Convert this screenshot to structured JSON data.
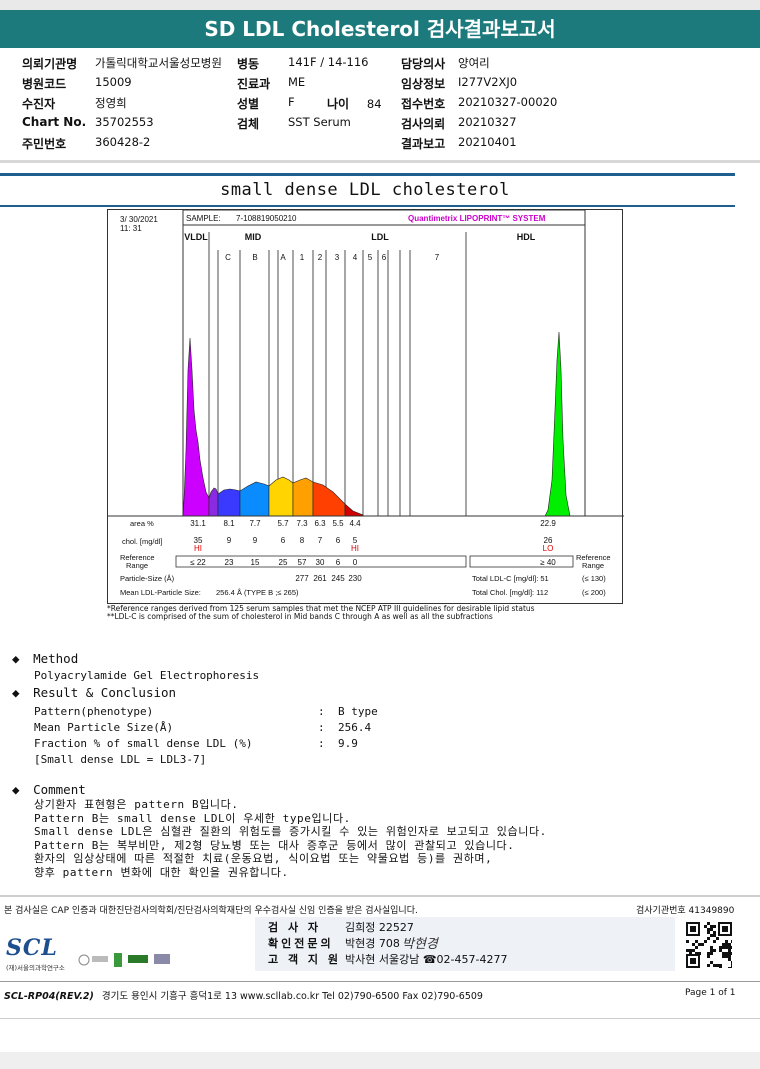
{
  "title": "SD LDL Cholesterol 검사결과보고서",
  "header": {
    "rows": [
      [
        {
          "k": "의뢰기관명",
          "v": "가톨릭대학교서울성모병원"
        },
        {
          "k": "병동",
          "v": "141F / 14-116"
        },
        {
          "k": "담당의사",
          "v": "양여리"
        }
      ],
      [
        {
          "k": "병원코드",
          "v": "15009"
        },
        {
          "k": "진료과",
          "v": "ME"
        },
        {
          "k": "임상정보",
          "v": "I277V2XJ0"
        }
      ],
      [
        {
          "k": "수진자",
          "v": "정영희"
        },
        {
          "k": "성별",
          "v": "F"
        },
        {
          "k": "접수번호",
          "v": "20210327-00020"
        }
      ],
      [
        {
          "k": "Chart No.",
          "v": "35702553"
        },
        {
          "k": "검체",
          "v": "SST Serum"
        },
        {
          "k": "검사의뢰",
          "v": "20210327"
        }
      ],
      [
        {
          "k": "주민번호",
          "v": "360428-2"
        },
        {
          "k": "",
          "v": ""
        },
        {
          "k": "결과보고",
          "v": "20210401"
        }
      ]
    ],
    "age_label": "나이",
    "age_value": "84"
  },
  "doc_title": "small dense LDL cholesterol",
  "chart_data": {
    "type": "area",
    "date": "3/ 30/2021",
    "time": "11: 31",
    "sample_label": "SAMPLE:",
    "sample_id": "7-108819050210",
    "brand": "Quantimetrix LIPOPRINT™ SYSTEM",
    "regions": [
      "VLDL",
      "MID",
      "LDL",
      "HDL"
    ],
    "bands": [
      "C",
      "B",
      "A",
      "1",
      "2",
      "3",
      "4",
      "5",
      "6",
      "7"
    ],
    "band_colors": [
      "#cc00ff",
      "#8a2be2",
      "#3a3aff",
      "#0a8cff",
      "#ffd400",
      "#ffa000",
      "#ff4000",
      "#d00000"
    ],
    "hdl_color": "#00ee00",
    "row_labels": {
      "area": "area %",
      "chol": "chol. [mg/dl]",
      "ref": "Reference Range",
      "particle": "Particle-Size (Å)",
      "mean": "Mean LDL-Particle Size:"
    },
    "area_pct": [
      "31.1",
      "8.1",
      "7.7",
      "5.7",
      "7.3",
      "6.3",
      "5.5",
      "4.4"
    ],
    "chol": [
      "35",
      "9",
      "9",
      "6",
      "8",
      "7",
      "6",
      "5"
    ],
    "chol_flags": [
      {
        "i": 0,
        "flag": "HI"
      },
      {
        "i": 7,
        "flag": "HI"
      }
    ],
    "ref_range": [
      "≤ 22",
      "23",
      "15",
      "25",
      "57",
      "30",
      "6",
      "0"
    ],
    "particle_size": [
      "277",
      "261",
      "245",
      "230"
    ],
    "mean_size": "256.4 Å (TYPE B ;≤ 265)",
    "hdl_area": "22.9",
    "hdl_chol": "26",
    "hdl_flag": "LO",
    "hdl_ref": "≥ 40",
    "ref_side_label": "Reference Range",
    "total_ldl_label": "Total LDL-C [mg/dl]: 51",
    "total_ldl_ref": "(≤ 130)",
    "total_chol_label": "Total Chol. [mg/dl]: 112",
    "total_chol_ref": "(≤ 200)"
  },
  "footnotes": [
    "*Reference ranges derived from 125 serum samples that met the NCEP ATP III guidelines for desirable lipid status",
    "**LDL-C is comprised of the sum of cholesterol in Mid bands C through A as well as all the subfractions"
  ],
  "method": {
    "heading": "Method",
    "text": "Polyacrylamide Gel Electrophoresis"
  },
  "result": {
    "heading": "Result & Conclusion",
    "items": [
      {
        "k": "Pattern(phenotype)",
        "v": "B type"
      },
      {
        "k": "Mean Particle Size(Å)",
        "v": "256.4"
      },
      {
        "k": "Fraction % of small dense LDL (%)",
        "v": "9.9"
      }
    ],
    "note": "[Small dense LDL = LDL3-7]"
  },
  "comment": {
    "heading": "Comment",
    "lines": [
      "상기환자 표현형은 pattern B입니다.",
      "Pattern B는 small dense LDL이 우세한 type입니다.",
      "Small dense LDL은 심혈관 질환의 위험도를 증가시킬 수 있는 위험인자로 보고되고 있습니다.",
      "Pattern B는 복부비만, 제2형 당뇨병 또는 대사 증후군 등에서 많이 관찰되고 있습니다.",
      "환자의 임상상태에 따른 적절한 치료(운동요법, 식이요법 또는 약물요법 등)를 권하며,",
      "향후 pattern 변화에 대한 확인을 권유합니다."
    ]
  },
  "footer": {
    "cert": "본 검사실은 CAP 인증과 대한진단검사의학회/진단검사의학재단의 우수검사실 신임 인증을 받은 검사실입니다.",
    "lab_no": "검사기관번호 41349890",
    "signers": [
      {
        "k": "검 사 자",
        "v": "김희정 22527"
      },
      {
        "k": "확인전문의",
        "v": "박현경 708"
      },
      {
        "k": "고 객 지 원",
        "v": "박사현 서울강남 ☎02-457-4277"
      }
    ],
    "signature": "박현경",
    "logo": "SCL",
    "logo_sub": "(재)서울의과학연구소",
    "form": "SCL-RP04(REV.2)",
    "address": "경기도 용인시 기흥구 흥덕1로 13  www.scllab.co.kr  Tel 02)790-6500  Fax 02)790-6509",
    "page": "Page 1 of 1"
  }
}
